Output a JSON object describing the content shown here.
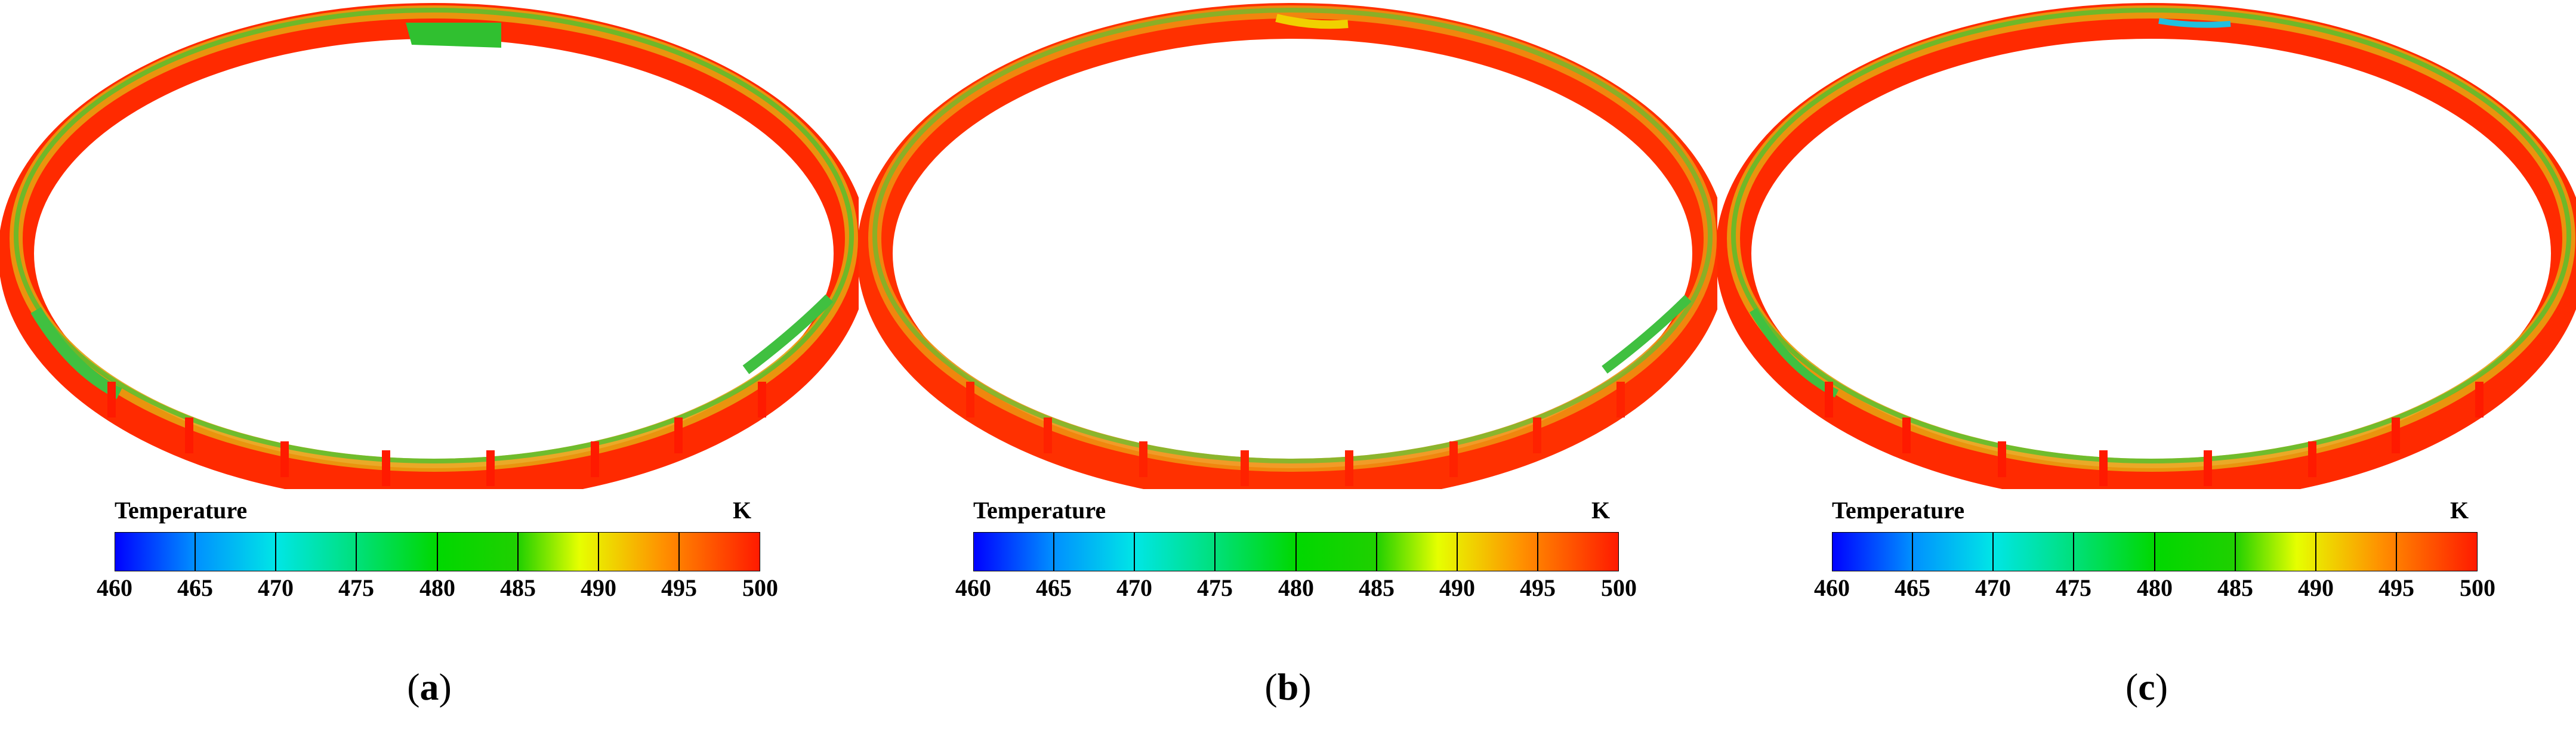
{
  "panels": [
    {
      "label_open": "(",
      "label_letter": "a",
      "label_close": ")"
    },
    {
      "label_open": "(",
      "label_letter": "b",
      "label_close": ")"
    },
    {
      "label_open": "(",
      "label_letter": "c",
      "label_close": ")"
    }
  ],
  "colorbar": {
    "title": "Temperature",
    "unit": "K",
    "ticks": [
      "460",
      "465",
      "470",
      "475",
      "480",
      "485",
      "490",
      "495",
      "500"
    ],
    "colors": [
      "#0000ff",
      "#00a0ff",
      "#00e6e6",
      "#00e040",
      "#00d000",
      "#20d000",
      "#e6ff00",
      "#ffa000",
      "#ff2000"
    ]
  }
}
